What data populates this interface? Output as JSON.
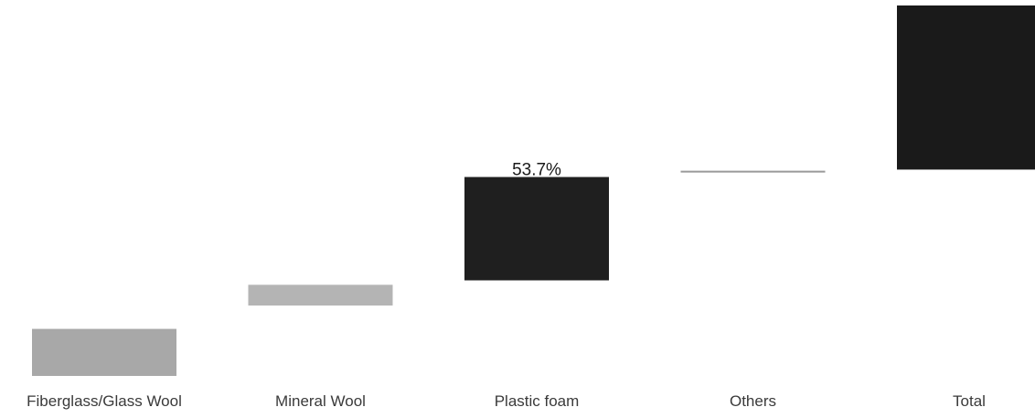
{
  "chart_data": {
    "type": "bar",
    "subtype": "waterfall",
    "title": "",
    "xlabel": "",
    "ylabel": "",
    "ylim": [
      0,
      100
    ],
    "grid": false,
    "legend": "none",
    "categories": [
      "Fiberglass/Glass Wool",
      "Mineral Wool",
      "Plastic foam",
      "Others",
      "Total"
    ],
    "steps": [
      {
        "category": "Fiberglass/Glass Wool",
        "start": 0,
        "end": 12.7,
        "color": "#a8a8a8",
        "label": ""
      },
      {
        "category": "Mineral Wool",
        "start": 19.0,
        "end": 24.6,
        "color": "#b4b4b4",
        "label": ""
      },
      {
        "category": "Plastic foam",
        "start": 25.8,
        "end": 53.7,
        "color": "#1f1f1f",
        "label": "53.7%"
      },
      {
        "category": "Others",
        "start": 54.9,
        "end": 55.4,
        "color": "#9a9a9a",
        "label": ""
      },
      {
        "category": "Total",
        "start": 55.7,
        "end": 100,
        "color": "#1a1a1a",
        "label": ""
      }
    ]
  }
}
